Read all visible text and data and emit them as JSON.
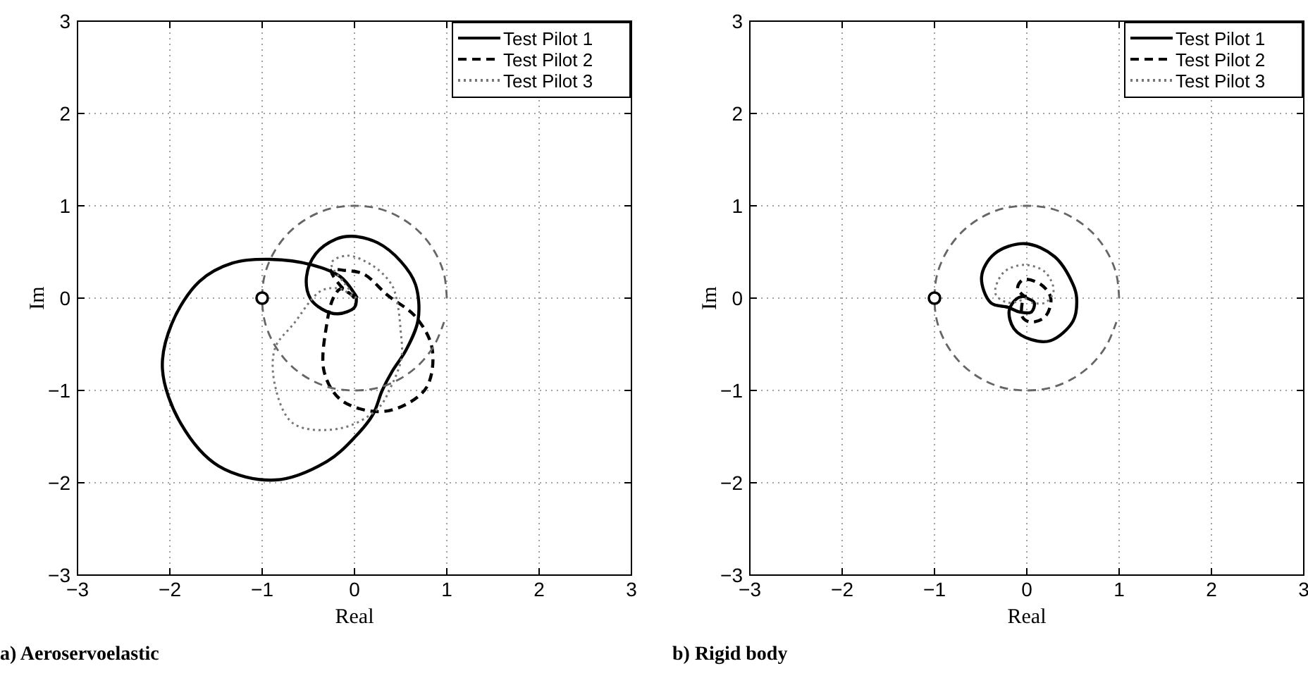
{
  "chart_data": [
    {
      "type": "line",
      "xlabel": "Real",
      "ylabel": "Im",
      "xlim": [
        -3,
        3
      ],
      "ylim": [
        -3,
        3
      ],
      "xticks": [
        -3,
        -2,
        -1,
        0,
        1,
        2,
        3
      ],
      "yticks": [
        -3,
        -2,
        -1,
        0,
        1,
        2,
        3
      ],
      "grid": true,
      "legend": "top right",
      "annotations": [
        "a) Aeroservoelastic"
      ],
      "series": [
        {
          "name": "Test Pilot 1",
          "color": "#000000",
          "line_style": "solid",
          "x": [
            0.02,
            0.0,
            -0.18,
            -0.35,
            -0.48,
            -0.52,
            -0.42,
            -0.2,
            -0.03,
            0.25,
            0.5,
            0.66,
            0.69,
            0.56,
            0.41,
            0.3,
            0.2,
            0.0,
            -0.3,
            -0.86,
            -1.47,
            -1.88,
            -2.08,
            -1.98,
            -1.68,
            -1.32,
            -0.91,
            -0.46,
            -0.15,
            0.0,
            0.03
          ],
          "values": [
            0.0,
            -0.1,
            -0.17,
            -0.12,
            0.0,
            0.23,
            0.48,
            0.64,
            0.67,
            0.6,
            0.4,
            0.15,
            -0.23,
            -0.56,
            -0.79,
            -1.0,
            -1.26,
            -1.51,
            -1.77,
            -1.97,
            -1.82,
            -1.36,
            -0.77,
            -0.28,
            0.18,
            0.38,
            0.42,
            0.36,
            0.23,
            0.05,
            0.0
          ]
        },
        {
          "name": "Test Pilot 2",
          "color": "#000000",
          "line_style": "dashed",
          "x": [
            0.0,
            -0.12,
            -0.25,
            -0.1,
            0.1,
            0.36,
            0.66,
            0.84,
            0.79,
            0.56,
            0.25,
            -0.15,
            -0.33,
            -0.3,
            -0.23,
            -0.15,
            -0.05,
            0.0
          ],
          "values": [
            0.02,
            0.1,
            0.3,
            0.3,
            0.26,
            0.03,
            -0.2,
            -0.54,
            -0.95,
            -1.15,
            -1.23,
            -1.1,
            -0.79,
            -0.28,
            0.0,
            0.1,
            0.05,
            0.0
          ]
        },
        {
          "name": "Test Pilot 3",
          "color": "#777777",
          "line_style": "dotted",
          "x": [
            0.02,
            -0.1,
            -0.25,
            -0.08,
            0.2,
            0.4,
            0.46,
            0.5,
            0.51,
            0.4,
            0.25,
            -0.15,
            -0.66,
            -0.86,
            -0.86,
            -0.66,
            -0.36,
            -0.15,
            0.0
          ],
          "values": [
            0.0,
            0.15,
            0.38,
            0.46,
            0.35,
            0.15,
            -0.03,
            -0.35,
            -0.64,
            -0.95,
            -1.2,
            -1.41,
            -1.36,
            -0.95,
            -0.54,
            -0.28,
            0.08,
            0.1,
            0.0
          ]
        },
        {
          "color": "#666666",
          "line_style": "dashed",
          "x": [
            1,
            0.97,
            0.87,
            0.71,
            0.5,
            0.26,
            0,
            -0.26,
            -0.5,
            -0.71,
            -0.87,
            -0.97,
            -1,
            -0.97,
            -0.87,
            -0.71,
            -0.5,
            -0.26,
            0,
            0.26,
            0.5,
            0.71,
            0.87,
            0.97
          ],
          "values": [
            0,
            0.26,
            0.5,
            0.71,
            0.87,
            0.97,
            1,
            0.97,
            0.87,
            0.71,
            0.5,
            0.26,
            0,
            -0.26,
            -0.5,
            -0.71,
            -0.87,
            -0.97,
            -1,
            -0.97,
            -0.87,
            -0.71,
            -0.5,
            -0.26
          ]
        },
        {
          "type": "scatter",
          "color": "#000000",
          "marker": "circle",
          "x": [
            -1
          ],
          "values": [
            0
          ]
        }
      ]
    },
    {
      "type": "line",
      "xlabel": "Real",
      "ylabel": "Im",
      "xlim": [
        -3,
        3
      ],
      "ylim": [
        -3,
        3
      ],
      "xticks": [
        -3,
        -2,
        -1,
        0,
        1,
        2,
        3
      ],
      "yticks": [
        -3,
        -2,
        -1,
        0,
        1,
        2,
        3
      ],
      "grid": true,
      "legend": "top right",
      "annotations": [
        "b) Rigid body"
      ],
      "series": [
        {
          "name": "Test Pilot 1",
          "color": "#000000",
          "line_style": "solid",
          "x": [
            0.0,
            0.08,
            0.05,
            -0.08,
            -0.2,
            -0.39,
            -0.49,
            -0.35,
            -0.02,
            0.3,
            0.5,
            0.54,
            0.5,
            0.26,
            0.05,
            -0.14,
            -0.19,
            -0.1,
            0.0
          ],
          "values": [
            0.0,
            -0.05,
            -0.15,
            -0.15,
            -0.1,
            -0.05,
            0.23,
            0.48,
            0.59,
            0.45,
            0.15,
            0.0,
            -0.25,
            -0.46,
            -0.45,
            -0.33,
            -0.13,
            0.0,
            0.02
          ]
        },
        {
          "name": "Test Pilot 2",
          "color": "#000000",
          "line_style": "dashed",
          "x": [
            0.0,
            -0.1,
            -0.04,
            0.15,
            0.26,
            0.2,
            0.04,
            -0.05,
            -0.05
          ],
          "values": [
            0.0,
            0.1,
            0.2,
            0.15,
            0.0,
            -0.2,
            -0.26,
            -0.2,
            -0.05
          ]
        },
        {
          "name": "Test Pilot 3",
          "color": "#777777",
          "line_style": "dotted",
          "x": [
            0.0,
            -0.2,
            -0.34,
            -0.25,
            -0.02,
            0.2,
            0.29,
            0.2,
            0.05
          ],
          "values": [
            0.0,
            -0.05,
            0.05,
            0.28,
            0.36,
            0.28,
            0.08,
            -0.05,
            -0.05
          ]
        },
        {
          "color": "#666666",
          "line_style": "dashed",
          "x": [
            1,
            0.97,
            0.87,
            0.71,
            0.5,
            0.26,
            0,
            -0.26,
            -0.5,
            -0.71,
            -0.87,
            -0.97,
            -1,
            -0.97,
            -0.87,
            -0.71,
            -0.5,
            -0.26,
            0,
            0.26,
            0.5,
            0.71,
            0.87,
            0.97
          ],
          "values": [
            0,
            0.26,
            0.5,
            0.71,
            0.87,
            0.97,
            1,
            0.97,
            0.87,
            0.71,
            0.5,
            0.26,
            0,
            -0.26,
            -0.5,
            -0.71,
            -0.87,
            -0.97,
            -1,
            -0.97,
            -0.87,
            -0.71,
            -0.5,
            -0.26
          ]
        },
        {
          "type": "scatter",
          "color": "#000000",
          "marker": "circle",
          "x": [
            -1
          ],
          "values": [
            0
          ]
        }
      ]
    }
  ]
}
